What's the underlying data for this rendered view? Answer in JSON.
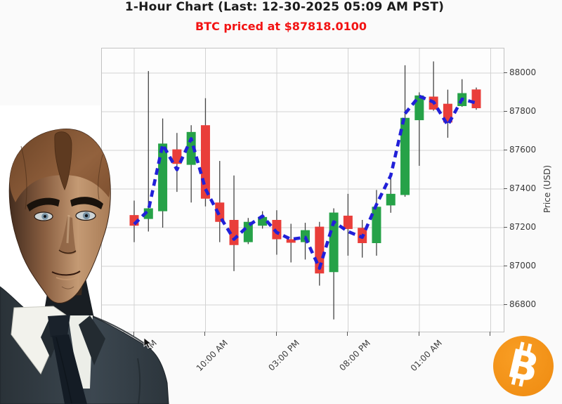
{
  "header": {
    "title": "1-Hour Chart (Last: 12-30-2025 05:09 AM PST)",
    "subtitle": "BTC priced at $87818.0100"
  },
  "branding": {
    "bitcoin_letter": "B",
    "bitcoin_color": "#f7931a"
  },
  "chart_data": {
    "type": "candlestick",
    "title": "1-Hour Chart (Last: 12-30-2025 05:09 AM PST)",
    "last_price": "$87818.0100",
    "ylabel": "Price (USD)",
    "grid": true,
    "ylim": [
      86662,
      88127
    ],
    "y_ticks": [
      88000,
      87800,
      87600,
      87400,
      87200,
      87000,
      86800
    ],
    "x_tick_labels": [
      "05:00 AM",
      "10:00 AM",
      "03:00 PM",
      "08:00 PM",
      "01:00 AM"
    ],
    "x_tick_hours": [
      0,
      5,
      10,
      15,
      20
    ],
    "x_grid_hours": [
      0,
      5,
      10,
      15,
      20,
      25
    ],
    "colors": {
      "up": "#26a248",
      "down": "#e93e3a",
      "ma_line": "#2120d8",
      "wick": "#444444",
      "grid": "#d2d2d2"
    },
    "ma_values": [
      87218,
      87290,
      87630,
      87500,
      87660,
      87400,
      87260,
      87140,
      87210,
      87260,
      87175,
      87140,
      87150,
      86990,
      87230,
      87180,
      87150,
      87320,
      87470,
      87790,
      87880,
      87850,
      87730,
      87865,
      87845
    ],
    "candles": [
      {
        "time": "05:00 AM",
        "open": 87265,
        "high": 87340,
        "low": 87125,
        "close": 87210
      },
      {
        "time": "06:00 AM",
        "open": 87245,
        "high": 88010,
        "low": 87180,
        "close": 87300
      },
      {
        "time": "07:00 AM",
        "open": 87285,
        "high": 87765,
        "low": 87200,
        "close": 87635
      },
      {
        "time": "08:00 AM",
        "open": 87605,
        "high": 87690,
        "low": 87385,
        "close": 87530
      },
      {
        "time": "09:00 AM",
        "open": 87525,
        "high": 87730,
        "low": 87330,
        "close": 87695
      },
      {
        "time": "10:00 AM",
        "open": 87730,
        "high": 87870,
        "low": 87310,
        "close": 87350
      },
      {
        "time": "11:00 AM",
        "open": 87330,
        "high": 87545,
        "low": 87125,
        "close": 87230
      },
      {
        "time": "12:00 PM",
        "open": 87240,
        "high": 87470,
        "low": 86975,
        "close": 87110
      },
      {
        "time": "01:00 PM",
        "open": 87125,
        "high": 87250,
        "low": 87115,
        "close": 87230
      },
      {
        "time": "02:00 PM",
        "open": 87210,
        "high": 87285,
        "low": 87195,
        "close": 87255
      },
      {
        "time": "03:00 PM",
        "open": 87240,
        "high": 87290,
        "low": 87060,
        "close": 87140
      },
      {
        "time": "04:00 PM",
        "open": 87140,
        "high": 87220,
        "low": 87020,
        "close": 87122
      },
      {
        "time": "05:00 PM",
        "open": 87125,
        "high": 87225,
        "low": 87035,
        "close": 87187
      },
      {
        "time": "06:00 PM",
        "open": 87205,
        "high": 87230,
        "low": 86900,
        "close": 86963
      },
      {
        "time": "07:00 PM",
        "open": 86970,
        "high": 87300,
        "low": 86725,
        "close": 87278
      },
      {
        "time": "08:00 PM",
        "open": 87262,
        "high": 87375,
        "low": 87055,
        "close": 87193
      },
      {
        "time": "09:00 PM",
        "open": 87199,
        "high": 87240,
        "low": 87045,
        "close": 87120
      },
      {
        "time": "10:00 PM",
        "open": 87120,
        "high": 87395,
        "low": 87055,
        "close": 87308
      },
      {
        "time": "11:00 PM",
        "open": 87315,
        "high": 87470,
        "low": 87277,
        "close": 87375
      },
      {
        "time": "12:00 AM",
        "open": 87369,
        "high": 88040,
        "low": 87360,
        "close": 87768
      },
      {
        "time": "01:00 AM",
        "open": 87756,
        "high": 87900,
        "low": 87520,
        "close": 87884
      },
      {
        "time": "02:00 AM",
        "open": 87878,
        "high": 88060,
        "low": 87805,
        "close": 87811
      },
      {
        "time": "03:00 AM",
        "open": 87841,
        "high": 87914,
        "low": 87665,
        "close": 87744
      },
      {
        "time": "04:00 AM",
        "open": 87829,
        "high": 87968,
        "low": 87825,
        "close": 87896
      },
      {
        "time": "05:00 AM",
        "open": 87915,
        "high": 87925,
        "low": 87810,
        "close": 87818
      }
    ]
  }
}
